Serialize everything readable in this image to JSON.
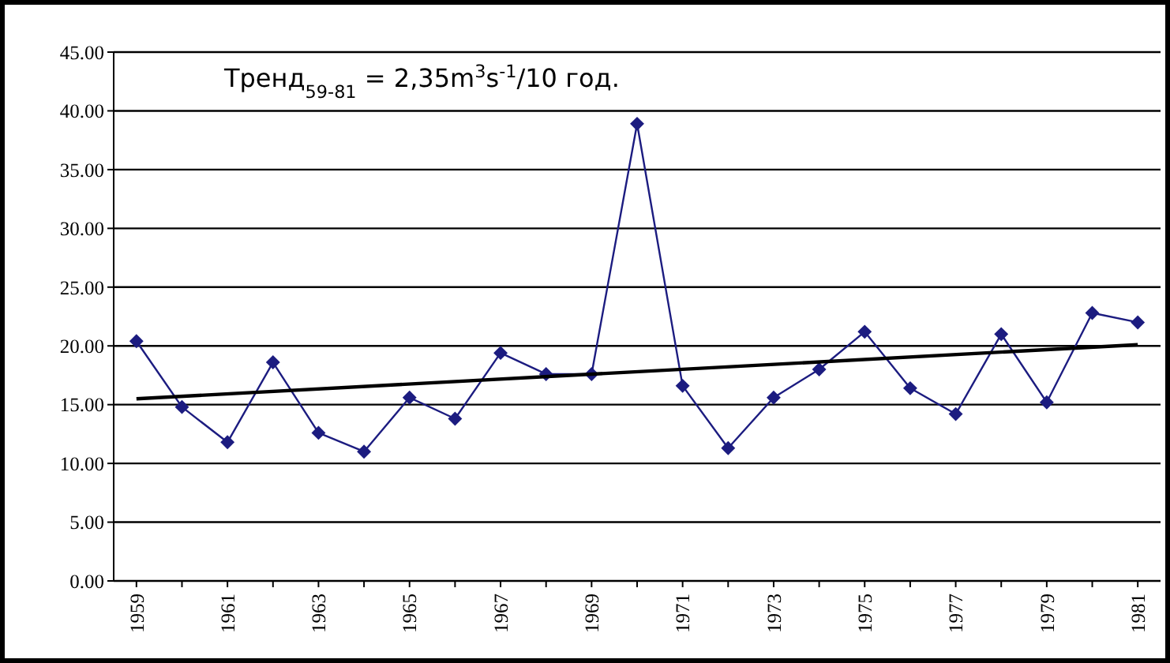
{
  "chart_data": {
    "type": "line",
    "annotations": [
      "Тренд$_{59-81}$ = 2,35m$^{3}$s$^{-1}$/10 год."
    ],
    "x": [
      1959,
      1960,
      1961,
      1962,
      1963,
      1964,
      1965,
      1966,
      1967,
      1968,
      1969,
      1970,
      1971,
      1972,
      1973,
      1974,
      1975,
      1976,
      1977,
      1978,
      1979,
      1980,
      1981
    ],
    "series": [
      {
        "color": "#1c1c80",
        "marker": "diamond",
        "values": [
          20.4,
          14.8,
          11.8,
          18.6,
          12.6,
          11.0,
          15.6,
          13.8,
          19.4,
          17.6,
          17.6,
          38.9,
          16.6,
          11.3,
          15.6,
          18.0,
          21.2,
          16.4,
          14.2,
          21.0,
          15.2,
          22.8,
          22.0
        ]
      },
      {
        "color": "#000000",
        "marker": "none",
        "x": [
          1959,
          1981
        ],
        "values": [
          15.5,
          20.1
        ]
      }
    ],
    "xlim": [
      1958.5,
      1981.5
    ],
    "xticks": [
      1959,
      {
        "value": 1960,
        "label": null
      },
      1961,
      {
        "value": 1962,
        "label": null
      },
      1963,
      {
        "value": 1964,
        "label": null
      },
      1965,
      {
        "value": 1966,
        "label": null
      },
      1967,
      {
        "value": 1968,
        "label": null
      },
      1969,
      {
        "value": 1970,
        "label": null
      },
      1971,
      {
        "value": 1972,
        "label": null
      },
      1973,
      {
        "value": 1974,
        "label": null
      },
      1975,
      {
        "value": 1976,
        "label": null
      },
      1977,
      {
        "value": 1978,
        "label": null
      },
      1979,
      {
        "value": 1980,
        "label": null
      },
      1981
    ],
    "ylim": [
      0,
      45
    ],
    "yticks": [
      {
        "value": 0,
        "label": "0.00"
      },
      {
        "value": 5,
        "label": "5.00"
      },
      {
        "value": 10,
        "label": "10.00"
      },
      {
        "value": 15,
        "label": "15.00"
      },
      {
        "value": 20,
        "label": "20.00"
      },
      {
        "value": 25,
        "label": "25.00"
      },
      {
        "value": 30,
        "label": "30.00"
      },
      {
        "value": 35,
        "label": "35.00"
      },
      {
        "value": 40,
        "label": "40.00"
      },
      {
        "value": 45,
        "label": "45.00"
      }
    ],
    "grid": "y"
  }
}
